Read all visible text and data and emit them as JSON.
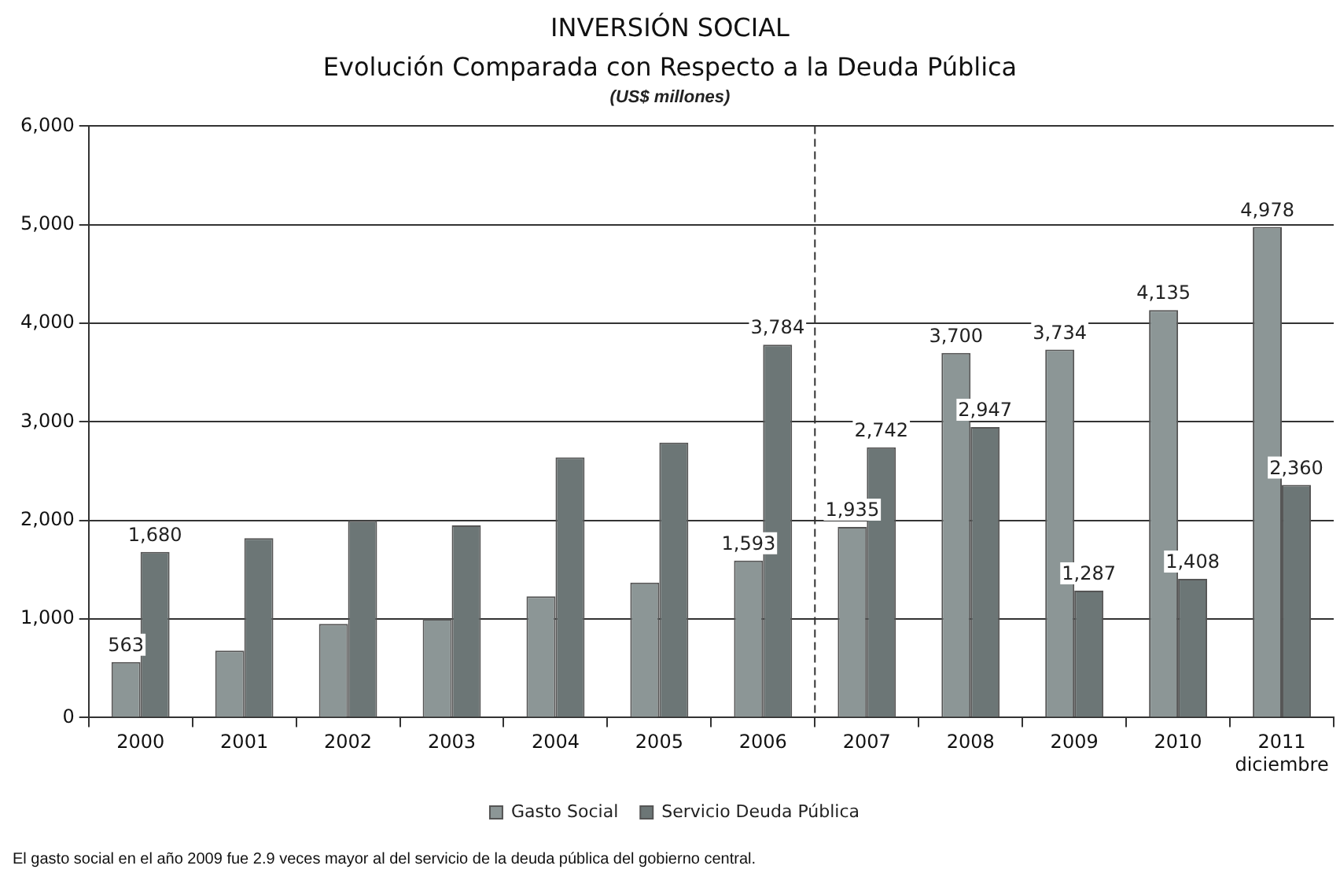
{
  "chart_data": {
    "type": "bar",
    "title": "INVERSIÓN SOCIAL",
    "subtitle": "Evolución Comparada con Respecto a la Deuda Pública",
    "ylabel": "(US$ millones)",
    "categories": [
      "2000",
      "2001",
      "2002",
      "2003",
      "2004",
      "2005",
      "2006",
      "2007",
      "2008",
      "2009",
      "2010",
      "2011\ndiciembre"
    ],
    "series": [
      {
        "name": "Gasto Social",
        "color": "#8c9696",
        "values": [
          563,
          680,
          950,
          1000,
          1230,
          1370,
          1593,
          1935,
          3700,
          3734,
          4135,
          4978
        ],
        "value_labels": [
          "563",
          null,
          null,
          null,
          null,
          null,
          "1,593",
          "1,935",
          "3,700",
          "3,734",
          "4,135",
          "4,978"
        ]
      },
      {
        "name": "Servicio Deuda Pública",
        "color": "#6c7676",
        "values": [
          1680,
          1820,
          2000,
          1950,
          2640,
          2790,
          3784,
          2742,
          2947,
          1287,
          1408,
          2360
        ],
        "value_labels": [
          "1,680",
          null,
          null,
          null,
          null,
          null,
          "3,784",
          "2,742",
          "2,947",
          "1,287",
          "1,408",
          "2,360"
        ]
      }
    ],
    "ylim": [
      0,
      6000
    ],
    "yticks": [
      {
        "value": 0,
        "label": "0"
      },
      {
        "value": 1000,
        "label": "1,000"
      },
      {
        "value": 2000,
        "label": "2,000"
      },
      {
        "value": 3000,
        "label": "3,000"
      },
      {
        "value": 4000,
        "label": "4,000"
      },
      {
        "value": 5000,
        "label": "5,000"
      },
      {
        "value": 6000,
        "label": "6,000"
      }
    ],
    "grid": "y",
    "legend": "bottom",
    "ref_lines": [
      {
        "axis": "x",
        "value": "2007",
        "line_style": "dashed",
        "color": "#333333"
      }
    ],
    "annotations": [
      "El gasto social en el año 2009 fue 2.9 veces mayor al del servicio de la deuda pública del gobierno central."
    ]
  }
}
